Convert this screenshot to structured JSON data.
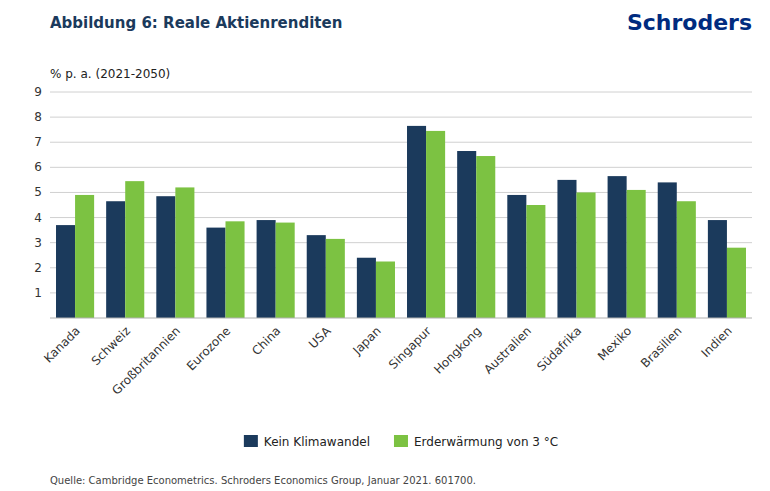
{
  "chart_data": {
    "type": "bar",
    "title": "Abbildung 6: Reale Aktienrenditen",
    "y_label": "% p. a. (2021-2050)",
    "annotations": [
      "Schroders",
      "Quelle: Cambridge Econometrics. Schroders Economics Group, Januar 2021. 601700."
    ],
    "categories": [
      "Kanada",
      "Schweiz",
      "Großbritannien",
      "Eurozone",
      "China",
      "USA",
      "Japan",
      "Singapur",
      "Hongkong",
      "Australien",
      "Südafrika",
      "Mexiko",
      "Brasilien",
      "Indien"
    ],
    "series": [
      {
        "name": "Kein Klimawandel",
        "color": "#1b3a5c",
        "values": [
          3.7,
          4.65,
          4.85,
          3.6,
          3.9,
          3.3,
          2.4,
          7.65,
          6.65,
          4.9,
          5.5,
          5.65,
          5.4,
          3.9
        ]
      },
      {
        "name": "Erderwärmung von 3 °C",
        "color": "#7cc242",
        "values": [
          4.9,
          5.45,
          5.2,
          3.85,
          3.8,
          3.15,
          2.25,
          7.45,
          6.45,
          4.5,
          5.0,
          5.1,
          4.65,
          2.8
        ]
      }
    ],
    "ylim": [
      0,
      9
    ],
    "yticks": [
      1,
      2,
      3,
      4,
      5,
      6,
      7,
      8,
      9
    ],
    "grid": true,
    "legend": "bottom"
  }
}
